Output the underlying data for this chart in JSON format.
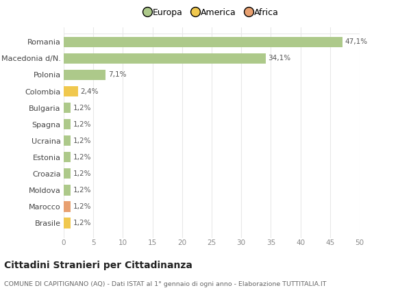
{
  "categories": [
    "Romania",
    "Macedonia d/N.",
    "Polonia",
    "Colombia",
    "Bulgaria",
    "Spagna",
    "Ucraina",
    "Estonia",
    "Croazia",
    "Moldova",
    "Marocco",
    "Brasile"
  ],
  "values": [
    47.1,
    34.1,
    7.1,
    2.4,
    1.2,
    1.2,
    1.2,
    1.2,
    1.2,
    1.2,
    1.2,
    1.2
  ],
  "labels": [
    "47,1%",
    "34,1%",
    "7,1%",
    "2,4%",
    "1,2%",
    "1,2%",
    "1,2%",
    "1,2%",
    "1,2%",
    "1,2%",
    "1,2%",
    "1,2%"
  ],
  "continent": [
    "Europa",
    "Europa",
    "Europa",
    "America",
    "Europa",
    "Europa",
    "Europa",
    "Europa",
    "Europa",
    "Europa",
    "Africa",
    "America"
  ],
  "colors": {
    "Europa": "#adc98a",
    "America": "#f0c84e",
    "Africa": "#e8a070"
  },
  "legend_labels": [
    "Europa",
    "America",
    "Africa"
  ],
  "legend_colors": [
    "#adc98a",
    "#f0c84e",
    "#e8a070"
  ],
  "xlim": [
    0,
    50
  ],
  "xticks": [
    0,
    5,
    10,
    15,
    20,
    25,
    30,
    35,
    40,
    45,
    50
  ],
  "title": "Cittadini Stranieri per Cittadinanza",
  "subtitle": "COMUNE DI CAPITIGNANO (AQ) - Dati ISTAT al 1° gennaio di ogni anno - Elaborazione TUTTITALIA.IT",
  "background_color": "#ffffff",
  "grid_color": "#e8e8e8",
  "bar_height": 0.65
}
